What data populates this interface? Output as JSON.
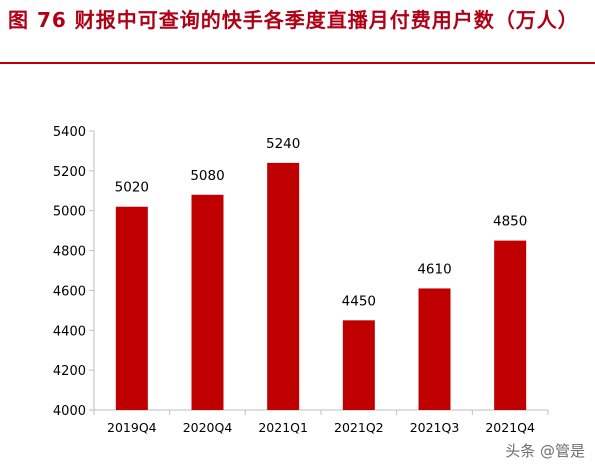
{
  "title": "图 76 财报中可查询的快手各季度直播月付费用户数（万人）",
  "watermark": "头条 @管是",
  "colors": {
    "bar": "#c00000",
    "title": "#b00016",
    "axis": "#bfbfbf",
    "text": "#000000"
  },
  "chart_data": {
    "type": "bar",
    "title": "",
    "xlabel": "",
    "ylabel": "",
    "categories": [
      "2019Q4",
      "2020Q4",
      "2021Q1",
      "2021Q2",
      "2021Q3",
      "2021Q4"
    ],
    "values": [
      5020,
      5080,
      5240,
      4450,
      4610,
      4850
    ],
    "ylim": [
      4000,
      5400
    ],
    "yticks": [
      4000,
      4200,
      4400,
      4600,
      4800,
      5000,
      5200,
      5400
    ],
    "grid": false,
    "legend": "none",
    "data_labels": true
  }
}
